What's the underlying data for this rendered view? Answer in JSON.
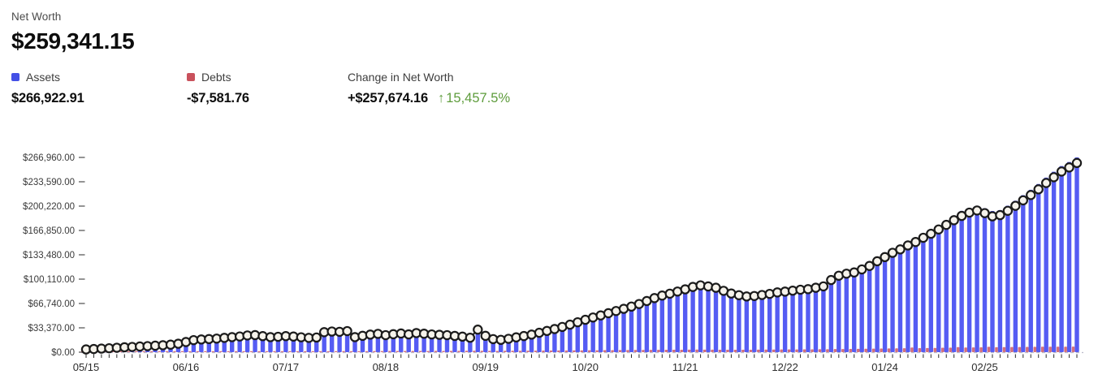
{
  "header": {
    "title": "Net Worth",
    "value": "$259,341.15"
  },
  "legend": {
    "assets": {
      "label": "Assets",
      "value": "$266,922.91",
      "color": "#4450E6"
    },
    "debts": {
      "label": "Debts",
      "value": "-$7,581.76",
      "color": "#C9515C"
    },
    "change": {
      "label": "Change in Net Worth",
      "value": "+$257,674.16",
      "arrow": "↑",
      "pct": "15,457.5%",
      "pct_color": "#5E9C3C"
    }
  },
  "chart_data": {
    "type": "bar",
    "subtype": "bar+line combo (monthly assets/debts bars with net-worth marker line)",
    "n_points": 130,
    "x_unit": "month (MM/YY)",
    "x_tick_labels": [
      "05/15",
      "06/16",
      "07/17",
      "08/18",
      "09/19",
      "10/20",
      "11/21",
      "12/22",
      "01/24",
      "02/25"
    ],
    "x_tick_positions": [
      0,
      13,
      26,
      39,
      52,
      65,
      78,
      91,
      104,
      117
    ],
    "ylim": [
      0,
      266960
    ],
    "y_tick_labels": [
      "$0.00",
      "$33,370.00",
      "$66,740.00",
      "$100,110.00",
      "$133,480.00",
      "$166,850.00",
      "$200,220.00",
      "$233,590.00",
      "$266,960.00"
    ],
    "grid": "dashed zero-line only",
    "legend_position": "above chart",
    "series": [
      {
        "name": "Assets",
        "type": "bar",
        "color": "#555CF3",
        "values": [
          4100,
          4650,
          5300,
          5800,
          6550,
          7200,
          7700,
          8350,
          8850,
          9500,
          10100,
          10950,
          12300,
          14650,
          17300,
          18200,
          18850,
          19500,
          20500,
          21550,
          22500,
          23900,
          24450,
          23100,
          21700,
          22250,
          23200,
          22600,
          21650,
          20900,
          21450,
          28800,
          29750,
          29300,
          30400,
          21950,
          23800,
          25550,
          26600,
          24850,
          26200,
          27250,
          26000,
          27900,
          26950,
          26000,
          25550,
          25000,
          24050,
          23100,
          21700,
          32900,
          24300,
          19700,
          18750,
          20200,
          22250,
          24100,
          26200,
          28750,
          31300,
          34000,
          36950,
          40100,
          43500,
          46950,
          50100,
          53100,
          56150,
          59200,
          62300,
          65450,
          69000,
          73200,
          77250,
          80800,
          83500,
          86450,
          89500,
          92900,
          95150,
          93600,
          91750,
          87500,
          83750,
          81400,
          79750,
          80400,
          81900,
          83450,
          85500,
          86700,
          88050,
          89400,
          90300,
          92250,
          94200,
          103000,
          109050,
          111950,
          113750,
          117950,
          122900,
          129450,
          135300,
          141350,
          146150,
          151700,
          157400,
          162400,
          168050,
          174100,
          180550,
          187100,
          193700,
          197750,
          200750,
          197250,
          193600,
          194750,
          200750,
          207650,
          215250,
          222650,
          230550,
          239350,
          247300,
          255150,
          260750,
          266922.91
        ]
      },
      {
        "name": "Debts",
        "type": "bar",
        "color": "#D3707B",
        "values": [
          300,
          350,
          400,
          400,
          450,
          500,
          500,
          550,
          550,
          600,
          600,
          650,
          700,
          750,
          800,
          800,
          850,
          900,
          900,
          950,
          1000,
          1000,
          1050,
          1100,
          1100,
          1150,
          1200,
          1200,
          1250,
          1300,
          1350,
          1400,
          1450,
          1400,
          1500,
          1350,
          1400,
          1450,
          1500,
          1550,
          1600,
          1650,
          1600,
          1700,
          1650,
          1700,
          1750,
          1700,
          1750,
          1800,
          1900,
          2000,
          1900,
          1800,
          1850,
          1900,
          1950,
          2000,
          2100,
          2150,
          2200,
          2300,
          2350,
          2400,
          2500,
          2550,
          2600,
          2700,
          2750,
          2800,
          2900,
          2950,
          3000,
          3100,
          3150,
          3200,
          3300,
          3350,
          3400,
          3500,
          3550,
          3500,
          3450,
          3400,
          3350,
          3300,
          3350,
          3400,
          3500,
          3550,
          3600,
          3700,
          3750,
          3800,
          3900,
          3950,
          4000,
          4100,
          4250,
          4350,
          4450,
          4550,
          4700,
          4850,
          5000,
          5150,
          5250,
          5400,
          6400,
          5600,
          5750,
          5900,
          6050,
          6200,
          6900,
          6450,
          6550,
          6650,
          7400,
          6850,
          6950,
          7050,
          7150,
          7250,
          7350,
          7450,
          7500,
          7550,
          7550,
          7581.76
        ]
      },
      {
        "name": "Net Worth",
        "type": "line",
        "color": "#1A1A1A",
        "marker_fill": "#F6F3EB",
        "values": [
          3800,
          4300,
          4900,
          5400,
          6100,
          6700,
          7200,
          7800,
          8300,
          8900,
          9500,
          10300,
          11600,
          13900,
          16500,
          17400,
          18000,
          18600,
          19600,
          20600,
          21500,
          22900,
          23400,
          22000,
          20600,
          21100,
          22000,
          21400,
          20400,
          19600,
          20100,
          27400,
          28300,
          27900,
          28900,
          20600,
          22400,
          24100,
          25100,
          23300,
          24600,
          25600,
          24400,
          26200,
          25300,
          24300,
          23800,
          23300,
          22300,
          21300,
          19800,
          30900,
          22400,
          17900,
          16900,
          18300,
          20300,
          22100,
          24100,
          26600,
          29100,
          31700,
          34600,
          37700,
          41000,
          44400,
          47500,
          50400,
          53400,
          56400,
          59400,
          62500,
          66000,
          70100,
          74100,
          77600,
          80200,
          83100,
          86100,
          89400,
          91600,
          90100,
          88300,
          84100,
          80400,
          78100,
          76400,
          77000,
          78400,
          79900,
          81900,
          83000,
          84300,
          85600,
          86400,
          88300,
          90200,
          98900,
          104800,
          107600,
          109300,
          113400,
          118200,
          124600,
          130300,
          136200,
          140900,
          146300,
          151000,
          156800,
          162300,
          168200,
          174500,
          180900,
          186800,
          191300,
          194200,
          190600,
          186200,
          187900,
          193800,
          200600,
          208100,
          215400,
          223200,
          231900,
          239800,
          247600,
          253200,
          259341.15
        ]
      }
    ]
  }
}
